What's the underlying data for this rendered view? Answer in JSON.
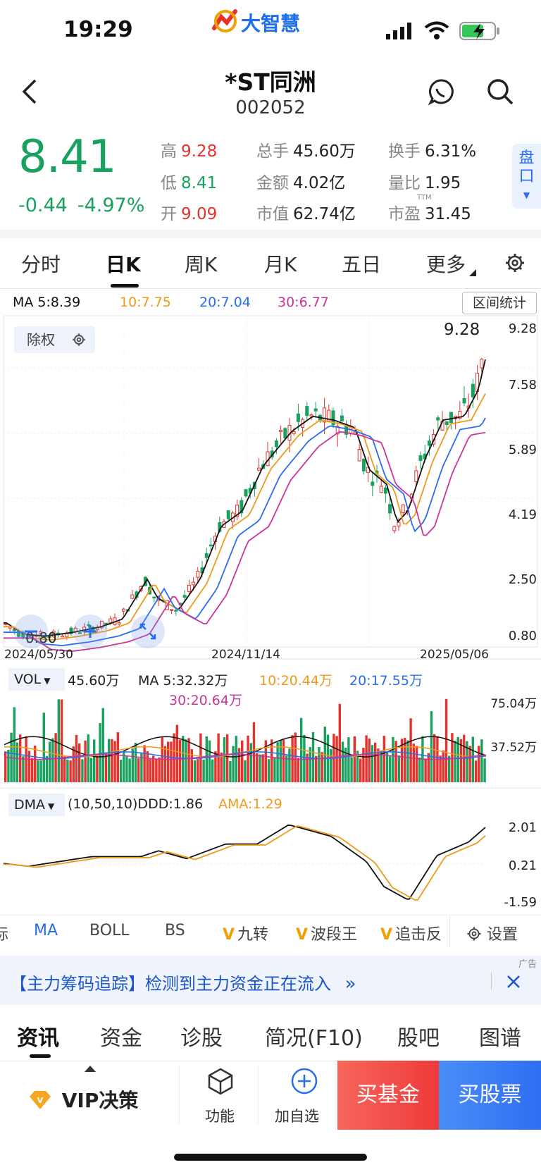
{
  "status_bar": {
    "time": "19:29",
    "brand": "大智慧"
  },
  "header": {
    "name": "*ST同洲",
    "code": "002052",
    "pan_label": "盘口"
  },
  "quote": {
    "price": "8.41",
    "change": "-0.44",
    "change_pct": "-4.97%",
    "high_label": "高",
    "high": "9.28",
    "low_label": "低",
    "low": "8.41",
    "open_label": "开",
    "open": "9.09",
    "vol_label": "总手",
    "vol": "45.60万",
    "amount_label": "金额",
    "amount": "4.02亿",
    "mcap_label": "市值",
    "mcap": "62.74亿",
    "turnover_label": "换手",
    "turnover": "6.31%",
    "vol_ratio_label": "量比",
    "vol_ratio": "1.95",
    "pe_label": "市盈",
    "pe_sup": "TTM",
    "pe": "31.45"
  },
  "tabs": [
    "分时",
    "日K",
    "周K",
    "月K",
    "五日",
    "更多"
  ],
  "active_tab": "日K",
  "chart": {
    "ma_legend": {
      "ma5": "MA 5:8.39",
      "ma10": "10:7.75",
      "ma20": "20:7.04",
      "ma30": "30:6.77"
    },
    "range_stats": "区间统计",
    "adjust_label": "除权",
    "high_marker": "9.28",
    "low_marker": "0.80",
    "y_ticks": [
      "9.28",
      "7.58",
      "5.89",
      "4.19",
      "2.50",
      "0.80"
    ],
    "x_ticks": [
      "2024/05/30",
      "2024/11/14",
      "2025/05/06"
    ],
    "vol_legend": {
      "name": "VOL",
      "vol": "45.60万",
      "ma5": "MA 5:32.32万",
      "ma10": "10:20.44万",
      "ma20": "20:17.55万",
      "ma30": "30:20.64万"
    },
    "vol_ticks": [
      "75.04万",
      "37.52万"
    ],
    "dma_legend": {
      "name": "DMA",
      "params": "(10,50,10)DDD:1.86",
      "ama": "AMA:1.29"
    },
    "dma_ticks": [
      "2.01",
      "0.21",
      "-1.59"
    ],
    "colors": {
      "up": "#e5322d",
      "down": "#19a15f",
      "ma5": "#111111",
      "ma10": "#f09a1a",
      "ma20": "#2a6cf0",
      "ma30": "#c8359a"
    }
  },
  "indicators": {
    "partial": "标",
    "ma": "MA",
    "boll": "BOLL",
    "bs": "BS",
    "v_mark": "V",
    "jiuzhuan": "九转",
    "boduan": "波段王",
    "zhuiji": "追击反",
    "settings": "设置"
  },
  "banner": {
    "text": "【主力筹码追踪】检测到主力资金正在流入",
    "arrow": "»",
    "ad": "广告"
  },
  "bottom_tabs": [
    "资讯",
    "资金",
    "诊股",
    "简况(F10)",
    "股吧",
    "图谱"
  ],
  "footer": {
    "vip": "VIP决策",
    "func": "功能",
    "add": "加自选",
    "buy_fund": "买基金",
    "buy_stock": "买股票"
  }
}
